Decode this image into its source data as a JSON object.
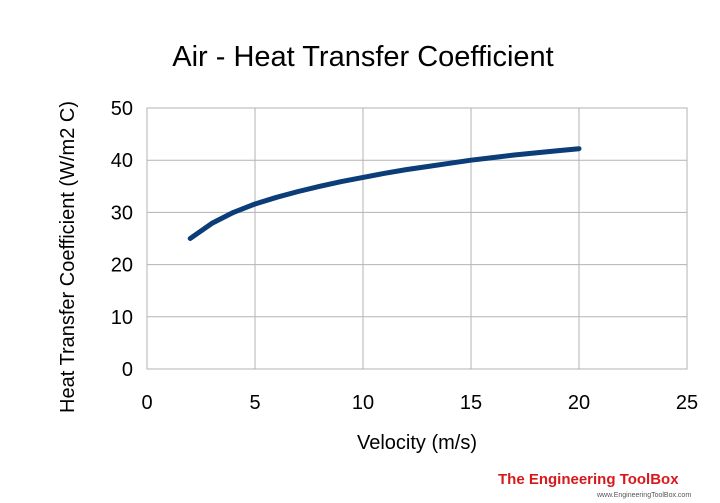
{
  "chart_data": {
    "type": "line",
    "title": "Air - Heat Transfer Coefficient",
    "xlabel": "Velocity (m/s)",
    "ylabel": "Heat Transfer Coefficient (W/m2 C)",
    "xlim": [
      0,
      25
    ],
    "ylim": [
      0,
      50
    ],
    "xticks": [
      0,
      5,
      10,
      15,
      20,
      25
    ],
    "yticks": [
      0,
      10,
      20,
      30,
      40,
      50
    ],
    "grid": true,
    "legend": "none",
    "series": [
      {
        "color": "#0b3d78",
        "x": [
          2,
          3,
          4,
          5,
          6,
          7,
          8,
          9,
          10,
          11,
          12,
          13,
          14,
          15,
          16,
          17,
          18,
          19,
          20
        ],
        "y": [
          25.0,
          27.9,
          30.0,
          31.6,
          32.9,
          34.0,
          35.0,
          35.9,
          36.7,
          37.5,
          38.2,
          38.8,
          39.4,
          40.0,
          40.5,
          41.0,
          41.4,
          41.8,
          42.2
        ]
      }
    ]
  },
  "watermark": {
    "brand": "The Engineering ToolBox",
    "url": "www.EngineeringToolBox.com"
  }
}
